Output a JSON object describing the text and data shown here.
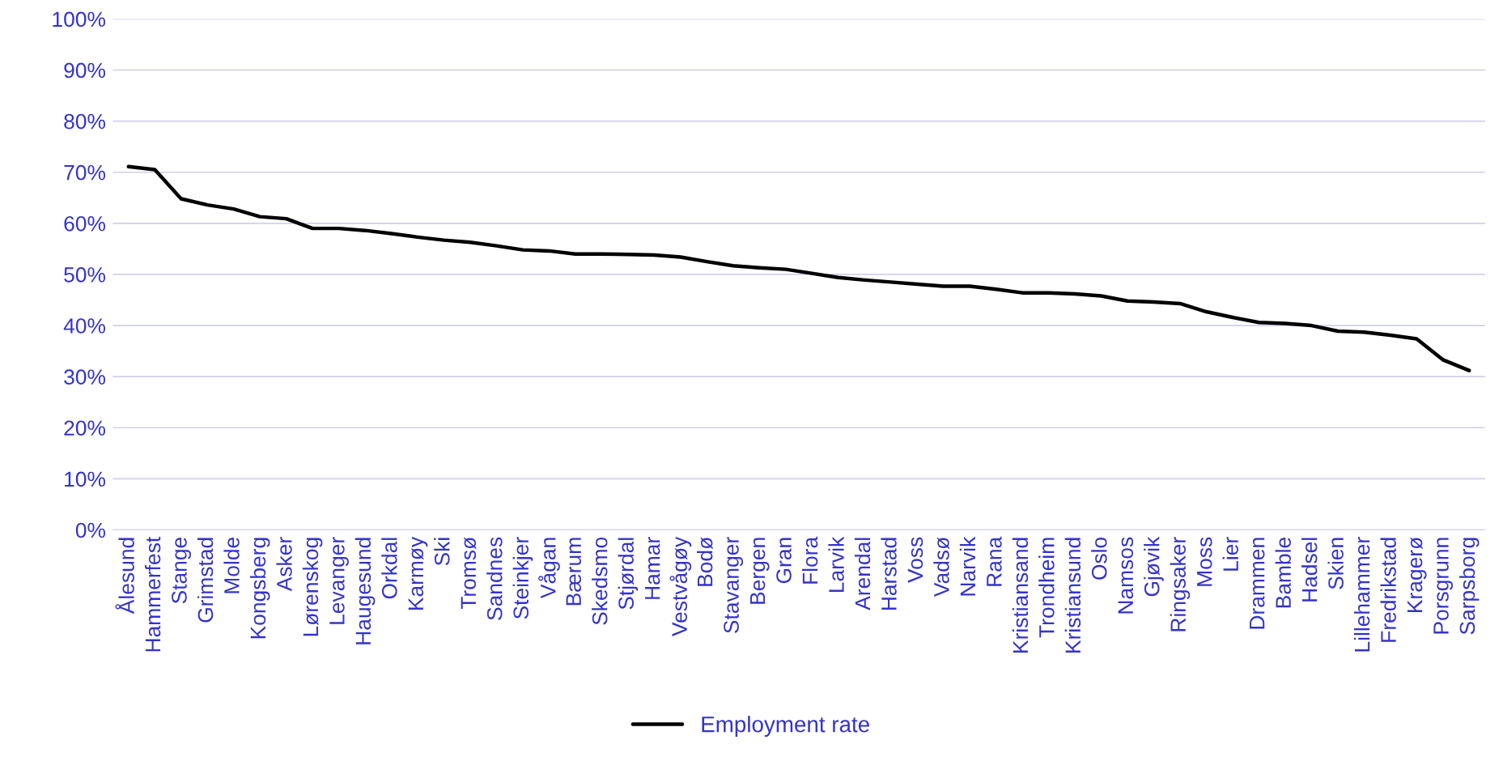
{
  "chart_data": {
    "type": "line",
    "categories": [
      "Ålesund",
      "Hammerfest",
      "Stange",
      "Grimstad",
      "Molde",
      "Kongsberg",
      "Asker",
      "Lørenskog",
      "Levanger",
      "Haugesund",
      "Orkdal",
      "Karmøy",
      "Ski",
      "Tromsø",
      "Sandnes",
      "Steinkjer",
      "Vågan",
      "Bærum",
      "Skedsmo",
      "Stjørdal",
      "Hamar",
      "Vestvågøy",
      "Bodø",
      "Stavanger",
      "Bergen",
      "Gran",
      "Flora",
      "Larvik",
      "Arendal",
      "Harstad",
      "Voss",
      "Vadsø",
      "Narvik",
      "Rana",
      "Kristiansand",
      "Trondheim",
      "Kristiansund",
      "Oslo",
      "Namsos",
      "Gjøvik",
      "Ringsaker",
      "Moss",
      "Lier",
      "Drammen",
      "Bamble",
      "Hadsel",
      "Skien",
      "Lillehammer",
      "Fredrikstad",
      "Kragerø",
      "Porsgrunn",
      "Sarpsborg"
    ],
    "series": [
      {
        "name": "Employment rate",
        "color": "#000000",
        "values": [
          71.1,
          70.5,
          64.8,
          63.6,
          62.8,
          61.3,
          60.9,
          59.0,
          59.0,
          58.6,
          58.0,
          57.3,
          56.7,
          56.3,
          55.6,
          54.8,
          54.6,
          54.0,
          54.0,
          53.9,
          53.8,
          53.4,
          52.5,
          51.7,
          51.3,
          51.0,
          50.2,
          49.4,
          48.9,
          48.5,
          48.1,
          47.7,
          47.7,
          47.1,
          46.4,
          46.4,
          46.2,
          45.8,
          44.8,
          44.6,
          44.3,
          42.7,
          41.6,
          40.6,
          40.4,
          40.0,
          38.9,
          38.7,
          38.1,
          37.4,
          33.3,
          31.2
        ]
      }
    ],
    "ylim": [
      0,
      100
    ],
    "yticks": [
      {
        "value": 0,
        "label": "0%"
      },
      {
        "value": 10,
        "label": "10%"
      },
      {
        "value": 20,
        "label": "20%"
      },
      {
        "value": 30,
        "label": "30%"
      },
      {
        "value": 40,
        "label": "40%"
      },
      {
        "value": 50,
        "label": "50%"
      },
      {
        "value": 60,
        "label": "60%"
      },
      {
        "value": 70,
        "label": "70%"
      },
      {
        "value": 80,
        "label": "80%"
      },
      {
        "value": 90,
        "label": "90%"
      },
      {
        "value": 100,
        "label": "100%"
      }
    ],
    "grid": "y",
    "legend": "bottom",
    "marker": "none",
    "line_style": "solid"
  }
}
